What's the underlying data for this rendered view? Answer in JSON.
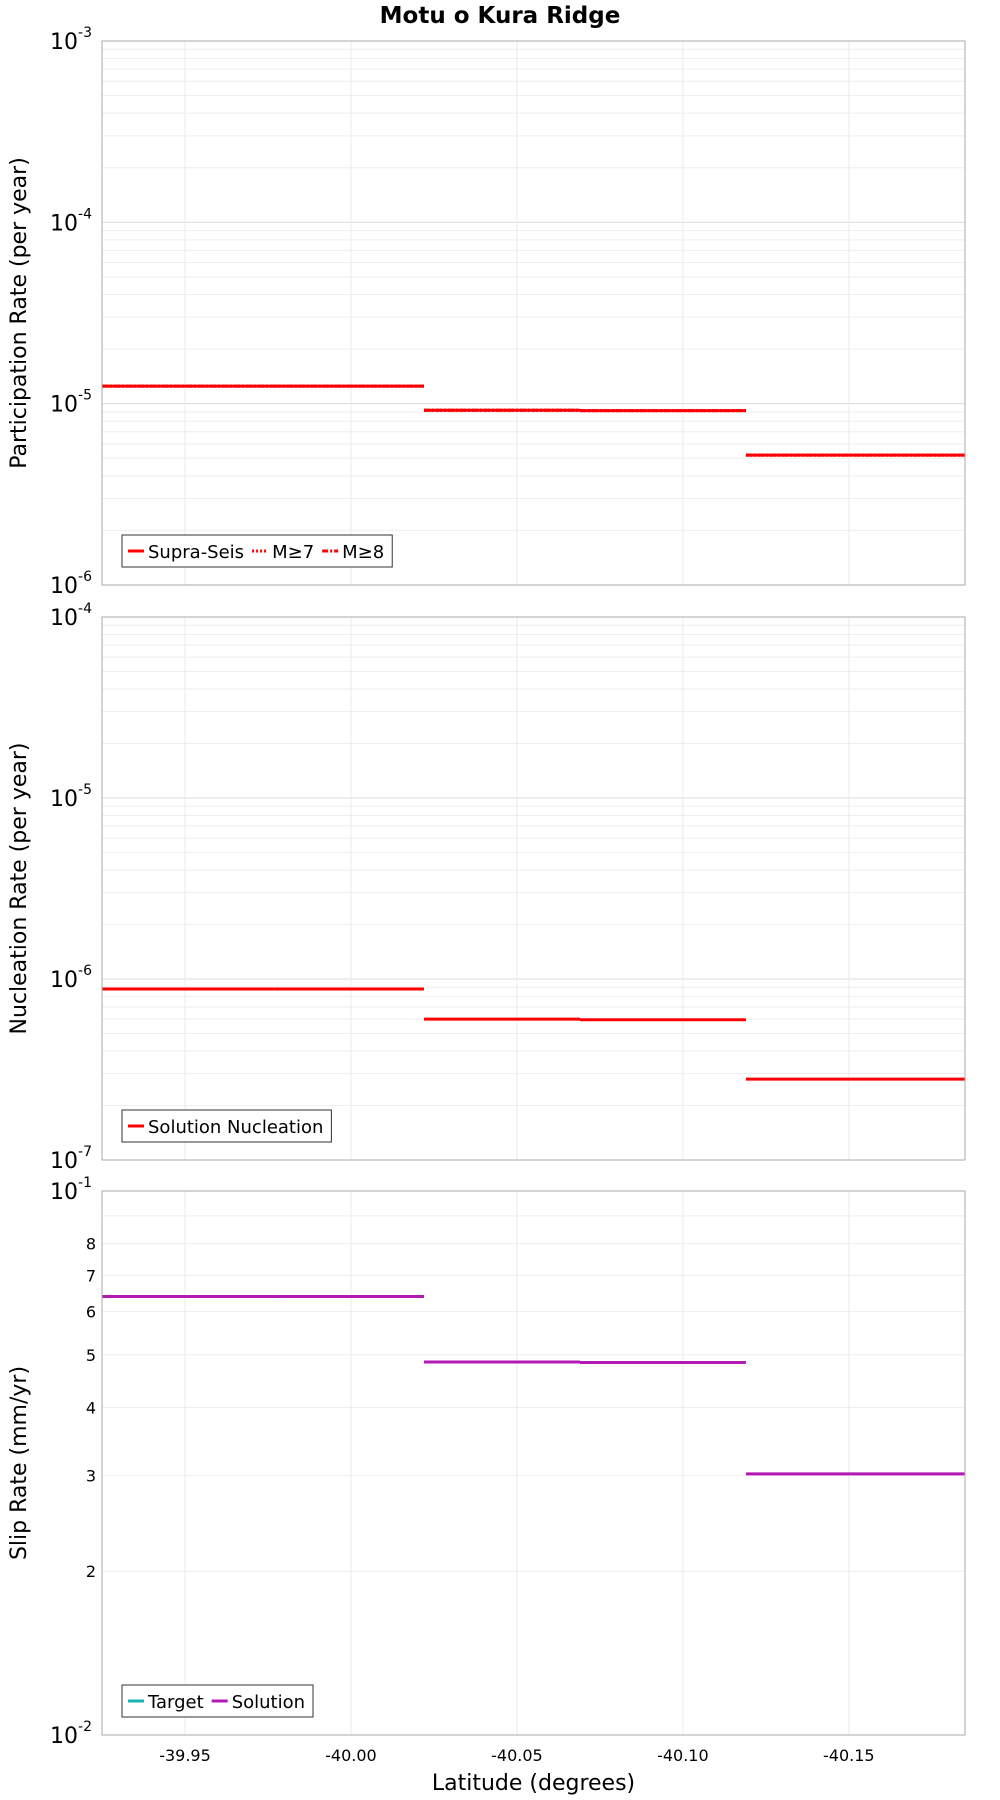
{
  "chart_data": [
    {
      "type": "line",
      "title": "Motu o Kura Ridge",
      "ylabel": "Participation Rate (per year)",
      "xlabel": "",
      "x_range": [
        -39.925,
        -40.185
      ],
      "ylim": [
        1e-06,
        0.001
      ],
      "yscale": "log",
      "y_tick_labels": [
        {
          "base": "10",
          "exp": "-6"
        },
        {
          "base": "10",
          "exp": "-5"
        },
        {
          "base": "10",
          "exp": "-4"
        },
        {
          "base": "10",
          "exp": "-3"
        }
      ],
      "grid": true,
      "legend_position": "bottom-left",
      "series": [
        {
          "name": "Supra-Seis",
          "color": "#ff0000",
          "style": "solid",
          "segments": [
            {
              "x": [
                -39.925,
                -39.977
              ],
              "y": 1.25e-05
            },
            {
              "x": [
                -39.977,
                -40.022
              ],
              "y": 1.25e-05
            },
            {
              "x": [
                -40.022,
                -40.069
              ],
              "y": 9.2e-06
            },
            {
              "x": [
                -40.069,
                -40.119
              ],
              "y": 9.15e-06
            },
            {
              "x": [
                -40.119,
                -40.185
              ],
              "y": 5.2e-06
            }
          ]
        },
        {
          "name": "M≥7",
          "color": "#ff0000",
          "style": "dotted",
          "segments": [
            {
              "x": [
                -39.925,
                -39.977
              ],
              "y": 1.25e-05
            },
            {
              "x": [
                -39.977,
                -40.022
              ],
              "y": 1.25e-05
            },
            {
              "x": [
                -40.022,
                -40.069
              ],
              "y": 9.2e-06
            },
            {
              "x": [
                -40.069,
                -40.119
              ],
              "y": 9.15e-06
            },
            {
              "x": [
                -40.119,
                -40.185
              ],
              "y": 5.2e-06
            }
          ]
        },
        {
          "name": "M≥8",
          "color": "#ff0000",
          "style": "dashdot",
          "segments": [
            {
              "x": [
                -39.925,
                -39.977
              ],
              "y": 1.25e-05
            },
            {
              "x": [
                -39.977,
                -40.022
              ],
              "y": 1.25e-05
            },
            {
              "x": [
                -40.022,
                -40.069
              ],
              "y": 9.2e-06
            },
            {
              "x": [
                -40.069,
                -40.119
              ],
              "y": 9.15e-06
            },
            {
              "x": [
                -40.119,
                -40.185
              ],
              "y": 5.2e-06
            }
          ]
        }
      ]
    },
    {
      "type": "line",
      "title": "",
      "ylabel": "Nucleation Rate (per year)",
      "xlabel": "",
      "x_range": [
        -39.925,
        -40.185
      ],
      "ylim": [
        1e-07,
        0.0001
      ],
      "yscale": "log",
      "y_tick_labels": [
        {
          "base": "10",
          "exp": "-7"
        },
        {
          "base": "10",
          "exp": "-6"
        },
        {
          "base": "10",
          "exp": "-5"
        },
        {
          "base": "10",
          "exp": "-4"
        }
      ],
      "grid": true,
      "legend_position": "bottom-left",
      "series": [
        {
          "name": "Solution Nucleation",
          "color": "#ff0000",
          "style": "solid",
          "segments": [
            {
              "x": [
                -39.925,
                -39.977
              ],
              "y": 8.8e-07
            },
            {
              "x": [
                -39.977,
                -40.022
              ],
              "y": 8.8e-07
            },
            {
              "x": [
                -40.022,
                -40.069
              ],
              "y": 6e-07
            },
            {
              "x": [
                -40.069,
                -40.119
              ],
              "y": 5.95e-07
            },
            {
              "x": [
                -40.119,
                -40.185
              ],
              "y": 2.8e-07
            }
          ]
        }
      ]
    },
    {
      "type": "line",
      "title": "",
      "ylabel": "Slip Rate (mm/yr)",
      "xlabel": "Latitude (degrees)",
      "x_range": [
        -39.925,
        -40.185
      ],
      "x_ticks": [
        -39.95,
        -40.0,
        -40.05,
        -40.1,
        -40.15
      ],
      "x_tick_labels": [
        "-39.95",
        "-40.00",
        "-40.05",
        "-40.10",
        "-40.15"
      ],
      "ylim": [
        0.01,
        0.1
      ],
      "yscale": "log",
      "y_tick_labels": [
        {
          "base": "10",
          "exp": "-2"
        },
        {
          "base": "10",
          "exp": "-1"
        }
      ],
      "y_minor_ticks": [
        0.02,
        0.03,
        0.04,
        0.05,
        0.06,
        0.07,
        0.08
      ],
      "y_minor_tick_labels": [
        "2",
        "3",
        "4",
        "5",
        "6",
        "7",
        "8"
      ],
      "grid": true,
      "legend_position": "bottom-left",
      "series": [
        {
          "name": "Target",
          "color": "#1ab3b3",
          "style": "solid",
          "segments": []
        },
        {
          "name": "Solution",
          "color": "#b31ab3",
          "style": "solid",
          "segments": [
            {
              "x": [
                -39.925,
                -39.977
              ],
              "y": 0.064
            },
            {
              "x": [
                -39.977,
                -40.022
              ],
              "y": 0.064
            },
            {
              "x": [
                -40.022,
                -40.069
              ],
              "y": 0.0485
            },
            {
              "x": [
                -40.069,
                -40.119
              ],
              "y": 0.0484
            },
            {
              "x": [
                -40.119,
                -40.185
              ],
              "y": 0.0302
            }
          ]
        }
      ]
    }
  ]
}
